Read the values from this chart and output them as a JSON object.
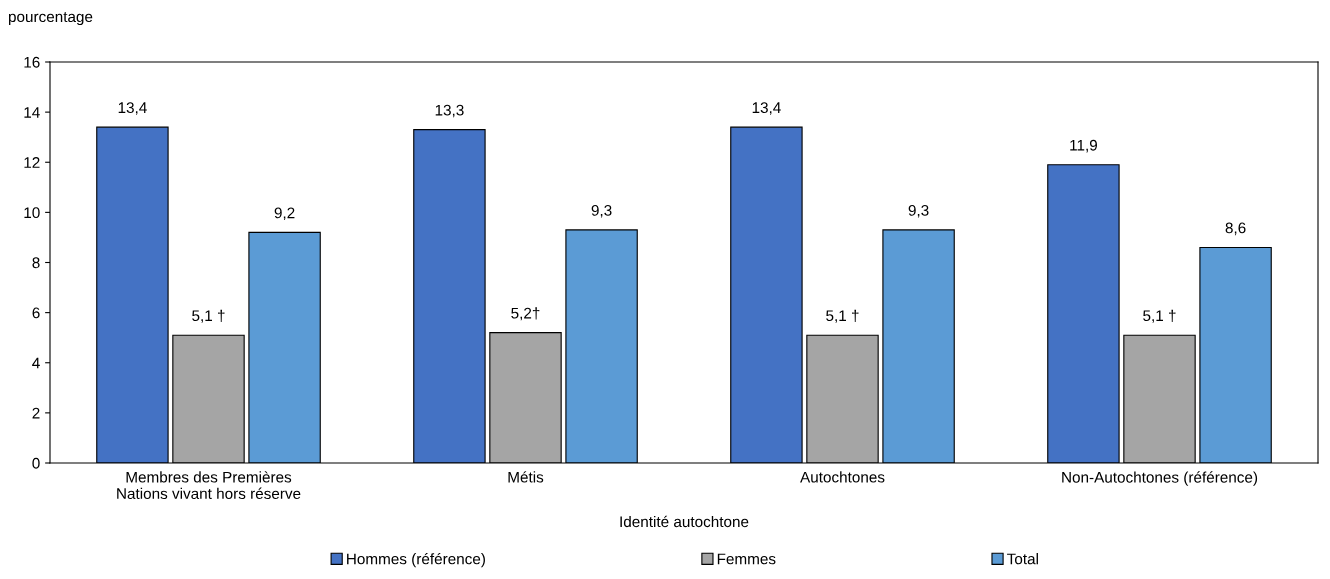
{
  "chart_data": {
    "type": "bar",
    "ylabel": "pourcentage",
    "xlabel": "Identité autochtone",
    "categories": [
      "Membres des Premières\nNations vivant hors réserve",
      "Métis",
      "Autochtones",
      "Non-Autochtones (référence)"
    ],
    "series": [
      {
        "name": "Hommes (référence)",
        "color": "#4472c4",
        "values": [
          13.4,
          13.3,
          13.4,
          11.9
        ],
        "value_labels": [
          "13,4",
          "13,3",
          "13,4",
          "11,9"
        ]
      },
      {
        "name": "Femmes",
        "color": "#a5a5a5",
        "values": [
          5.1,
          5.2,
          5.1,
          5.1
        ],
        "value_labels": [
          "5,1 †",
          "5,2†",
          "5,1 †",
          "5,1 †"
        ]
      },
      {
        "name": "Total",
        "color": "#5b9bd5",
        "values": [
          9.2,
          9.3,
          9.3,
          8.6
        ],
        "value_labels": [
          "9,2",
          "9,3",
          "9,3",
          "8,6"
        ]
      }
    ],
    "ylim": [
      0,
      16
    ],
    "yticks": [
      0,
      2,
      4,
      6,
      8,
      10,
      12,
      14,
      16
    ],
    "grid": false,
    "legend": "bottom"
  }
}
